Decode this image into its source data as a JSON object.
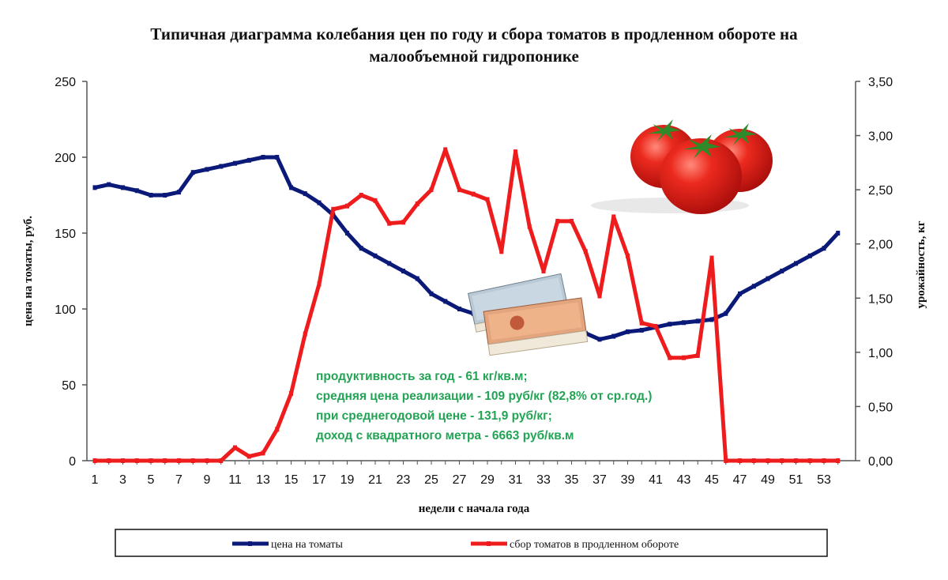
{
  "chart_data": {
    "type": "line",
    "title_line1": "Типичная диаграмма колебания цен по году и сбора томатов в продленном обороте на",
    "title_line2": "малообъемной гидропонике",
    "xlabel": "недели с начала года",
    "ylabel_left": "цена на томаты, руб.",
    "ylabel_right": "урожайность, кг",
    "ylim_left": [
      0,
      250
    ],
    "ylim_right": [
      0,
      3.5
    ],
    "left_ticks": [
      "0",
      "50",
      "100",
      "150",
      "200",
      "250"
    ],
    "right_ticks": [
      "0,00",
      "0,50",
      "1,00",
      "1,50",
      "2,00",
      "2,50",
      "3,00",
      "3,50"
    ],
    "x_ticks": [
      "1",
      "3",
      "5",
      "7",
      "9",
      "11",
      "13",
      "15",
      "17",
      "19",
      "21",
      "23",
      "25",
      "27",
      "29",
      "31",
      "33",
      "35",
      "37",
      "39",
      "41",
      "43",
      "45",
      "47",
      "49",
      "51",
      "53"
    ],
    "x": [
      1,
      2,
      3,
      4,
      5,
      6,
      7,
      8,
      9,
      10,
      11,
      12,
      13,
      14,
      15,
      16,
      17,
      18,
      19,
      20,
      21,
      22,
      23,
      24,
      25,
      26,
      27,
      28,
      29,
      30,
      31,
      32,
      33,
      34,
      35,
      36,
      37,
      38,
      39,
      40,
      41,
      42,
      43,
      44,
      45,
      46,
      47,
      48,
      49,
      50,
      51,
      52,
      53,
      54
    ],
    "series": [
      {
        "name": "цена на томаты",
        "axis": "left",
        "color": "#0b1a78",
        "values": [
          180,
          182,
          180,
          178,
          175,
          175,
          177,
          190,
          192,
          194,
          196,
          198,
          200,
          200,
          180,
          176,
          170,
          162,
          150,
          140,
          135,
          130,
          125,
          120,
          110,
          105,
          100,
          97,
          95,
          93,
          91,
          89,
          88,
          87,
          86,
          84,
          80,
          82,
          85,
          86,
          88,
          90,
          91,
          92,
          93,
          97,
          110,
          115,
          120,
          125,
          130,
          135,
          140,
          150
        ]
      },
      {
        "name": "сбор томатов в продленном обороте",
        "axis": "right",
        "color": "#ee1c1c",
        "values": [
          0,
          0,
          0,
          0,
          0,
          0,
          0,
          0,
          0,
          0,
          0.12,
          0.04,
          0.07,
          0.29,
          0.62,
          1.17,
          1.63,
          2.32,
          2.35,
          2.45,
          2.4,
          2.19,
          2.2,
          2.37,
          2.5,
          2.87,
          2.5,
          2.46,
          2.41,
          1.93,
          2.85,
          2.16,
          1.75,
          2.21,
          2.21,
          1.93,
          1.52,
          2.25,
          1.89,
          1.27,
          1.24,
          0.95,
          0.95,
          0.97,
          1.87,
          0,
          0,
          0,
          0,
          0,
          0,
          0,
          0,
          0
        ]
      }
    ],
    "grid": false,
    "legend_position": "bottom"
  },
  "annotations": {
    "lines": [
      "продуктивность за год - 61 кг/кв.м;",
      "средняя цена реализации - 109 руб/кг (82,8% от ср.год.)",
      "при среднегодовой цене - 131,9 руб/кг;",
      "доход с квадратного метра - 6663 руб/кв.м"
    ]
  },
  "images": {
    "tomatoes": "tomatoes-image",
    "money": "ruble-banknotes-image"
  }
}
